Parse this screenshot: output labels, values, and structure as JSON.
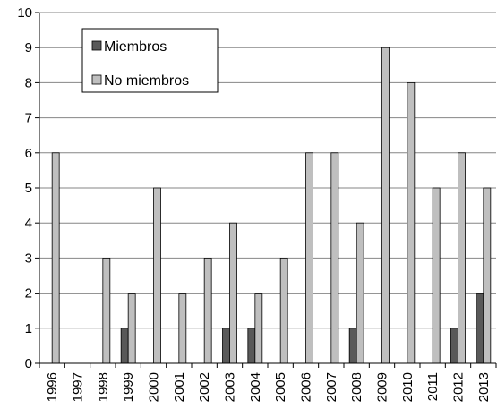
{
  "chart_data": {
    "type": "bar",
    "title": "",
    "xlabel": "",
    "ylabel": "",
    "categories": [
      "1996",
      "1997",
      "1998",
      "1999",
      "2000",
      "2001",
      "2002",
      "2003",
      "2004",
      "2005",
      "2006",
      "2007",
      "2008",
      "2009",
      "2010",
      "2011",
      "2012",
      "2013"
    ],
    "series": [
      {
        "name": "Miembros",
        "color": "#595959",
        "values": [
          0,
          0,
          0,
          1,
          0,
          0,
          0,
          1,
          1,
          0,
          0,
          0,
          1,
          0,
          0,
          0,
          1,
          2
        ]
      },
      {
        "name": "No miembros",
        "color": "#bfbfbf",
        "values": [
          6,
          0,
          3,
          2,
          5,
          2,
          3,
          4,
          2,
          3,
          6,
          6,
          4,
          9,
          8,
          5,
          6,
          5
        ]
      }
    ],
    "ylim": [
      0,
      10
    ],
    "yticks": [
      0,
      1,
      2,
      3,
      4,
      5,
      6,
      7,
      8,
      9,
      10
    ],
    "grid": true,
    "legend_position": "top-left"
  }
}
